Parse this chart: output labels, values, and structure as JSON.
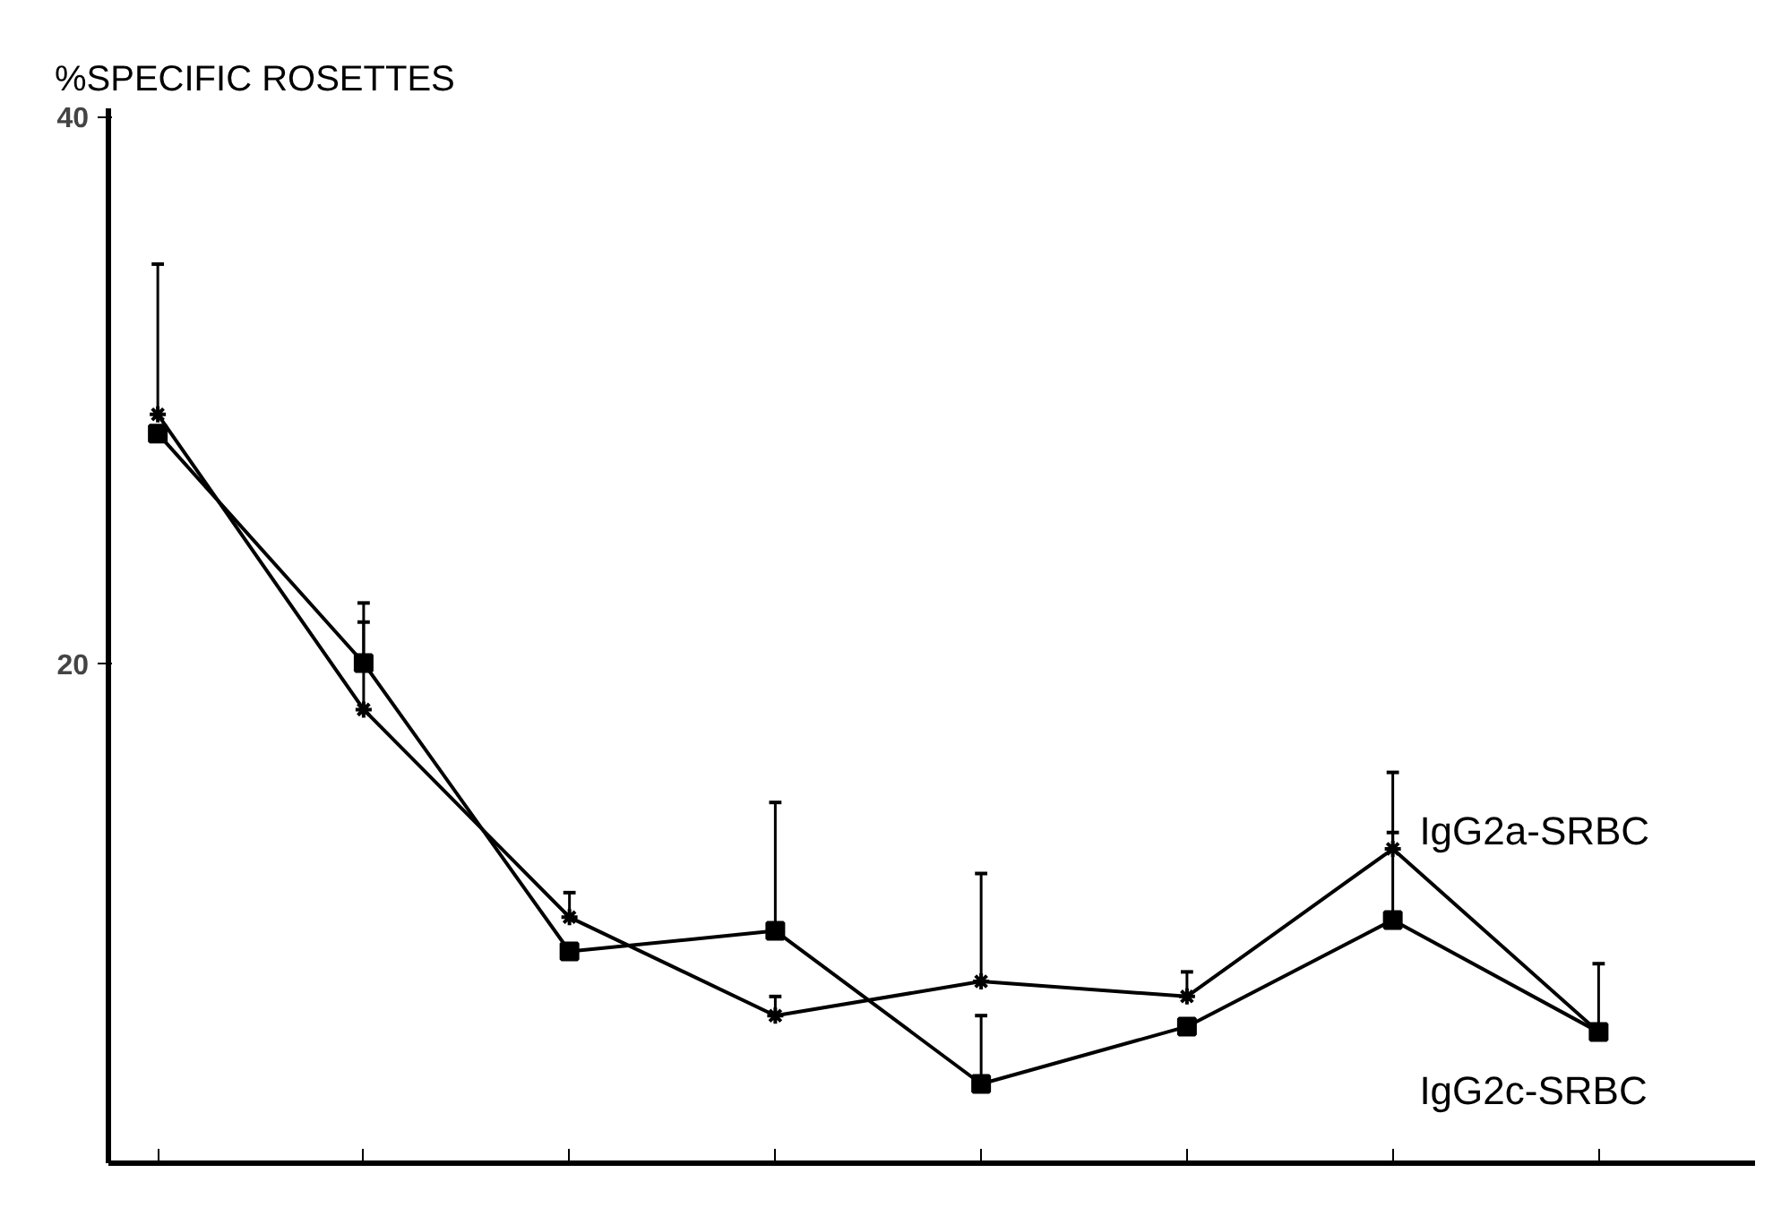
{
  "chart_data": {
    "type": "line",
    "ylabel": "%SPECIFIC ROSETTES",
    "categories": [
      null,
      null,
      null,
      null,
      null,
      null,
      null,
      null
    ],
    "ylim": [
      1.7,
      40.3
    ],
    "yticks": [
      20,
      40
    ],
    "grid": false,
    "series": [
      {
        "name": "IgG2a-SRBC",
        "color": "#000000",
        "marker": "cross",
        "values": [
          29.1,
          18.3,
          10.7,
          7.1,
          8.35,
          7.8,
          13.2,
          6.5
        ],
        "errors": [
          [
            29.1,
            34.6
          ],
          [
            18.3,
            21.5
          ],
          [
            10.7,
            11.6
          ],
          [
            7.1,
            7.8
          ],
          [
            8.35,
            12.3
          ],
          [
            7.8,
            8.7
          ],
          [
            13.2,
            16.0
          ],
          [
            6.5,
            9.0
          ]
        ]
      },
      {
        "name": "IgG2c-SRBC",
        "color": "#000000",
        "marker": "square",
        "values": [
          28.4,
          20.0,
          9.45,
          10.2,
          4.6,
          6.7,
          10.6,
          6.5
        ],
        "errors": [
          null,
          [
            20.0,
            22.2
          ],
          null,
          [
            10.2,
            14.9
          ],
          [
            4.6,
            7.1
          ],
          null,
          [
            10.6,
            13.8
          ],
          null
        ]
      }
    ]
  }
}
